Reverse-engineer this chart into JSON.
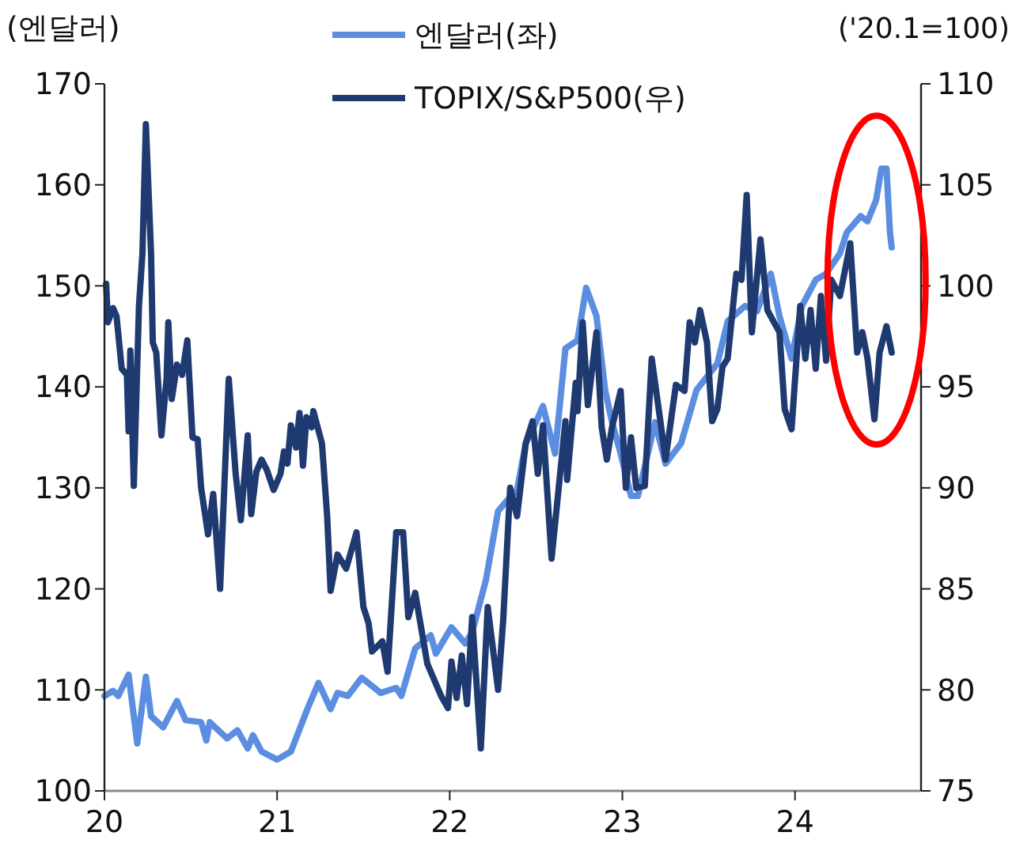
{
  "chart_data": {
    "type": "line",
    "ylabel": "(엔달러)",
    "y2label": "('20.1=100)",
    "legend": "top",
    "grid": false,
    "xlim": [
      20,
      24.73
    ],
    "xticks": [
      20,
      21,
      22,
      23,
      24
    ],
    "ylim": [
      100,
      170
    ],
    "yticks": [
      100,
      110,
      120,
      130,
      140,
      150,
      160,
      170
    ],
    "y2lim": [
      75,
      110
    ],
    "y2ticks": [
      75,
      80,
      85,
      90,
      95,
      100,
      105,
      110
    ],
    "line_style": "solid",
    "marker": "none",
    "series": [
      {
        "name": "엔달러(좌)",
        "color": "#5b8de0",
        "x": [
          20.0,
          20.05,
          20.08,
          20.14,
          20.19,
          20.24,
          20.27,
          20.34,
          20.42,
          20.47,
          20.56,
          20.59,
          20.61,
          20.71,
          20.77,
          20.83,
          20.86,
          20.91,
          21.0,
          21.08,
          21.18,
          21.24,
          21.31,
          21.35,
          21.41,
          21.49,
          21.6,
          21.69,
          21.72,
          21.8,
          21.89,
          21.92,
          22.01,
          22.09,
          22.13,
          22.21,
          22.28,
          22.33,
          22.39,
          22.44,
          22.5,
          22.54,
          22.61,
          22.67,
          22.74,
          22.79,
          22.85,
          22.9,
          22.94,
          22.99,
          23.05,
          23.09,
          23.19,
          23.25,
          23.34,
          23.43,
          23.55,
          23.61,
          23.71,
          23.78,
          23.86,
          23.91,
          23.98,
          24.04,
          24.12,
          24.18,
          24.26,
          24.3,
          24.38,
          24.42,
          24.47,
          24.5,
          24.53,
          24.55,
          24.56
        ],
        "values": [
          109.4,
          109.9,
          109.4,
          111.5,
          104.7,
          111.3,
          107.4,
          106.3,
          108.9,
          107.0,
          106.8,
          105.0,
          106.8,
          105.2,
          106.0,
          104.2,
          105.5,
          103.9,
          103.1,
          103.9,
          108.3,
          110.7,
          108.1,
          109.7,
          109.4,
          111.2,
          109.7,
          110.2,
          109.4,
          114.1,
          115.4,
          113.6,
          116.2,
          114.6,
          115.7,
          120.9,
          127.7,
          128.7,
          129.8,
          134.4,
          136.5,
          138.1,
          133.4,
          143.8,
          144.6,
          149.8,
          147.0,
          139.7,
          136.5,
          133.4,
          129.2,
          129.2,
          136.5,
          132.4,
          134.4,
          139.7,
          142.3,
          146.5,
          148.0,
          147.5,
          151.2,
          147.0,
          142.8,
          148.0,
          150.6,
          151.2,
          153.2,
          155.3,
          156.9,
          156.4,
          158.5,
          161.6,
          161.6,
          155.3,
          153.8
        ]
      },
      {
        "name": "TOPIX/S&P500(우)",
        "color": "#1f3a70",
        "axis": "y2",
        "x": [
          20.01,
          20.02,
          20.05,
          20.07,
          20.1,
          20.13,
          20.14,
          20.15,
          20.17,
          20.2,
          20.22,
          20.24,
          20.27,
          20.28,
          20.3,
          20.33,
          20.36,
          20.37,
          20.39,
          20.42,
          20.45,
          20.48,
          20.51,
          20.54,
          20.56,
          20.6,
          20.63,
          20.67,
          20.72,
          20.76,
          20.79,
          20.83,
          20.85,
          20.88,
          20.91,
          20.94,
          20.98,
          21.02,
          21.04,
          21.06,
          21.08,
          21.11,
          21.13,
          21.15,
          21.17,
          21.2,
          21.21,
          21.26,
          21.29,
          21.31,
          21.35,
          21.4,
          21.46,
          21.5,
          21.53,
          21.55,
          21.61,
          21.64,
          21.69,
          21.73,
          21.76,
          21.8,
          21.87,
          21.95,
          21.99,
          22.01,
          22.04,
          22.07,
          22.1,
          22.13,
          22.18,
          22.22,
          22.28,
          22.31,
          22.35,
          22.39,
          22.44,
          22.48,
          22.51,
          22.54,
          22.59,
          22.67,
          22.68,
          22.73,
          22.74,
          22.77,
          22.8,
          22.85,
          22.88,
          22.91,
          22.94,
          22.99,
          23.02,
          23.05,
          23.08,
          23.13,
          23.17,
          23.22,
          23.25,
          23.31,
          23.36,
          23.39,
          23.42,
          23.45,
          23.49,
          23.52,
          23.55,
          23.58,
          23.61,
          23.66,
          23.69,
          23.72,
          23.75,
          23.8,
          23.84,
          23.91,
          23.94,
          23.98,
          24.03,
          24.06,
          24.09,
          24.12,
          24.15,
          24.18,
          24.21,
          24.26,
          24.32,
          24.36,
          24.39,
          24.42,
          24.46,
          24.49,
          24.53,
          24.56
        ],
        "values": [
          100.1,
          98.2,
          98.9,
          98.5,
          95.9,
          95.6,
          92.8,
          96.8,
          90.1,
          99.0,
          101.6,
          108.0,
          101.6,
          97.2,
          96.7,
          92.6,
          95.4,
          98.2,
          94.4,
          96.1,
          95.6,
          97.3,
          92.5,
          92.4,
          90.0,
          87.7,
          89.7,
          85.0,
          95.4,
          90.7,
          88.4,
          92.6,
          88.7,
          90.8,
          91.4,
          90.9,
          89.9,
          90.7,
          91.8,
          91.2,
          93.1,
          92.0,
          93.7,
          91.1,
          93.5,
          93.0,
          93.8,
          92.2,
          88.6,
          84.9,
          86.7,
          86.0,
          87.8,
          84.1,
          83.3,
          81.9,
          82.4,
          80.9,
          87.8,
          87.8,
          83.6,
          84.8,
          81.3,
          79.7,
          79.1,
          81.4,
          79.6,
          81.7,
          79.3,
          83.6,
          77.1,
          84.1,
          80.0,
          83.5,
          90.0,
          88.6,
          92.2,
          93.3,
          90.7,
          93.1,
          86.5,
          93.3,
          90.4,
          95.2,
          93.8,
          98.2,
          94.1,
          97.7,
          93.0,
          91.4,
          93.0,
          94.8,
          90.0,
          92.5,
          90.0,
          90.1,
          96.4,
          93.3,
          91.4,
          95.1,
          94.8,
          98.2,
          97.2,
          98.8,
          97.2,
          93.3,
          93.9,
          96.0,
          96.4,
          100.6,
          100.3,
          104.5,
          97.7,
          102.3,
          98.8,
          97.7,
          93.9,
          92.9,
          99.0,
          96.4,
          98.8,
          95.9,
          99.5,
          96.3,
          100.3,
          99.5,
          102.1,
          96.7,
          97.7,
          96.4,
          93.4,
          96.7,
          98.0,
          96.7
        ]
      }
    ]
  }
}
